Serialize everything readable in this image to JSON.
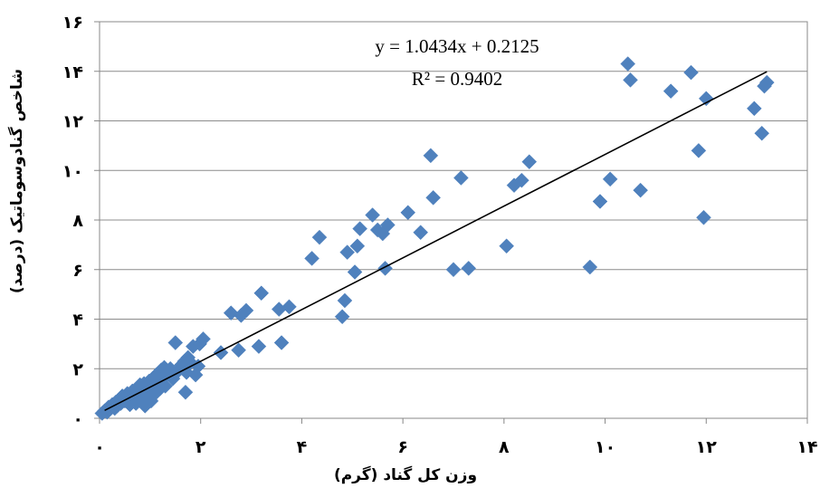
{
  "chart_data": {
    "type": "scatter",
    "title": "",
    "xlabel": "وزن کل گناد  (گرم)",
    "ylabel": "شاخص گنادوسوماتیک  (درصد)",
    "xlim": [
      0,
      14
    ],
    "ylim": [
      0,
      16
    ],
    "x_ticks": [
      0,
      2,
      4,
      6,
      8,
      10,
      12,
      14
    ],
    "y_ticks": [
      0,
      2,
      4,
      6,
      8,
      10,
      12,
      14,
      16
    ],
    "x_tick_labels": [
      "۰",
      "۲",
      "۴",
      "۶",
      "۸",
      "۱۰",
      "۱۲",
      "۱۴"
    ],
    "y_tick_labels": [
      "۰",
      "۲",
      "۴",
      "۶",
      "۸",
      "۱۰",
      "۱۲",
      "۱۴",
      "۱۶"
    ],
    "grid": "horizontal",
    "marker_color": "#4f81bd",
    "marker_shape": "diamond",
    "trendline": {
      "slope": 1.0434,
      "intercept": 0.2125,
      "equation": "y = 1.0434x + 0.2125",
      "r2": "R² = 0.9402",
      "x_range": [
        0.1,
        13.2
      ],
      "color": "#000000"
    },
    "series": [
      {
        "points": [
          [
            0.05,
            0.2
          ],
          [
            0.1,
            0.3
          ],
          [
            0.15,
            0.25
          ],
          [
            0.18,
            0.45
          ],
          [
            0.2,
            0.35
          ],
          [
            0.25,
            0.55
          ],
          [
            0.3,
            0.4
          ],
          [
            0.32,
            0.65
          ],
          [
            0.35,
            0.5
          ],
          [
            0.4,
            0.75
          ],
          [
            0.42,
            0.6
          ],
          [
            0.45,
            0.9
          ],
          [
            0.5,
            0.7
          ],
          [
            0.52,
            0.85
          ],
          [
            0.55,
            1.0
          ],
          [
            0.6,
            0.55
          ],
          [
            0.62,
            0.8
          ],
          [
            0.65,
            1.1
          ],
          [
            0.7,
            0.9
          ],
          [
            0.72,
            0.6
          ],
          [
            0.75,
            1.2
          ],
          [
            0.78,
            1.0
          ],
          [
            0.8,
            1.35
          ],
          [
            0.82,
            0.75
          ],
          [
            0.85,
            1.1
          ],
          [
            0.88,
            1.4
          ],
          [
            0.9,
            0.5
          ],
          [
            0.92,
            1.25
          ],
          [
            0.95,
            0.9
          ],
          [
            0.98,
            1.5
          ],
          [
            1.0,
            1.15
          ],
          [
            1.02,
            0.7
          ],
          [
            1.05,
            1.6
          ],
          [
            1.08,
            1.3
          ],
          [
            1.1,
            1.0
          ],
          [
            1.12,
            1.75
          ],
          [
            1.15,
            1.45
          ],
          [
            1.18,
            1.85
          ],
          [
            1.2,
            1.2
          ],
          [
            1.22,
            1.95
          ],
          [
            1.25,
            1.6
          ],
          [
            1.28,
            2.05
          ],
          [
            1.3,
            1.3
          ],
          [
            1.35,
            1.85
          ],
          [
            1.4,
            2.0
          ],
          [
            1.45,
            1.6
          ],
          [
            1.5,
            3.05
          ],
          [
            1.55,
            1.9
          ],
          [
            1.62,
            2.15
          ],
          [
            1.68,
            2.3
          ],
          [
            1.7,
            1.05
          ],
          [
            1.72,
            1.85
          ],
          [
            1.75,
            2.45
          ],
          [
            1.8,
            2.25
          ],
          [
            1.85,
            2.9
          ],
          [
            1.9,
            1.75
          ],
          [
            1.95,
            2.1
          ],
          [
            1.98,
            3.0
          ],
          [
            2.05,
            3.2
          ],
          [
            2.4,
            2.65
          ],
          [
            2.6,
            4.25
          ],
          [
            2.75,
            2.75
          ],
          [
            2.8,
            4.15
          ],
          [
            2.9,
            4.35
          ],
          [
            3.15,
            2.9
          ],
          [
            3.2,
            5.05
          ],
          [
            3.55,
            4.4
          ],
          [
            3.6,
            3.05
          ],
          [
            3.75,
            4.5
          ],
          [
            4.2,
            6.45
          ],
          [
            4.35,
            7.3
          ],
          [
            4.8,
            4.1
          ],
          [
            4.85,
            4.75
          ],
          [
            4.9,
            6.7
          ],
          [
            5.05,
            5.9
          ],
          [
            5.1,
            6.95
          ],
          [
            5.15,
            7.65
          ],
          [
            5.4,
            8.2
          ],
          [
            5.5,
            7.6
          ],
          [
            5.6,
            7.45
          ],
          [
            5.65,
            6.05
          ],
          [
            5.7,
            7.8
          ],
          [
            6.1,
            8.3
          ],
          [
            6.35,
            7.5
          ],
          [
            6.55,
            10.6
          ],
          [
            6.6,
            8.9
          ],
          [
            7.0,
            6.0
          ],
          [
            7.15,
            9.7
          ],
          [
            7.3,
            6.05
          ],
          [
            8.05,
            6.95
          ],
          [
            8.2,
            9.4
          ],
          [
            8.35,
            9.6
          ],
          [
            8.5,
            10.35
          ],
          [
            9.7,
            6.1
          ],
          [
            9.9,
            8.75
          ],
          [
            10.1,
            9.65
          ],
          [
            10.45,
            14.3
          ],
          [
            10.5,
            13.65
          ],
          [
            10.7,
            9.2
          ],
          [
            11.3,
            13.2
          ],
          [
            11.7,
            13.95
          ],
          [
            11.85,
            10.8
          ],
          [
            11.95,
            8.1
          ],
          [
            12.0,
            12.9
          ],
          [
            12.95,
            12.5
          ],
          [
            13.1,
            11.5
          ],
          [
            13.15,
            13.4
          ],
          [
            13.2,
            13.55
          ]
        ]
      }
    ]
  }
}
